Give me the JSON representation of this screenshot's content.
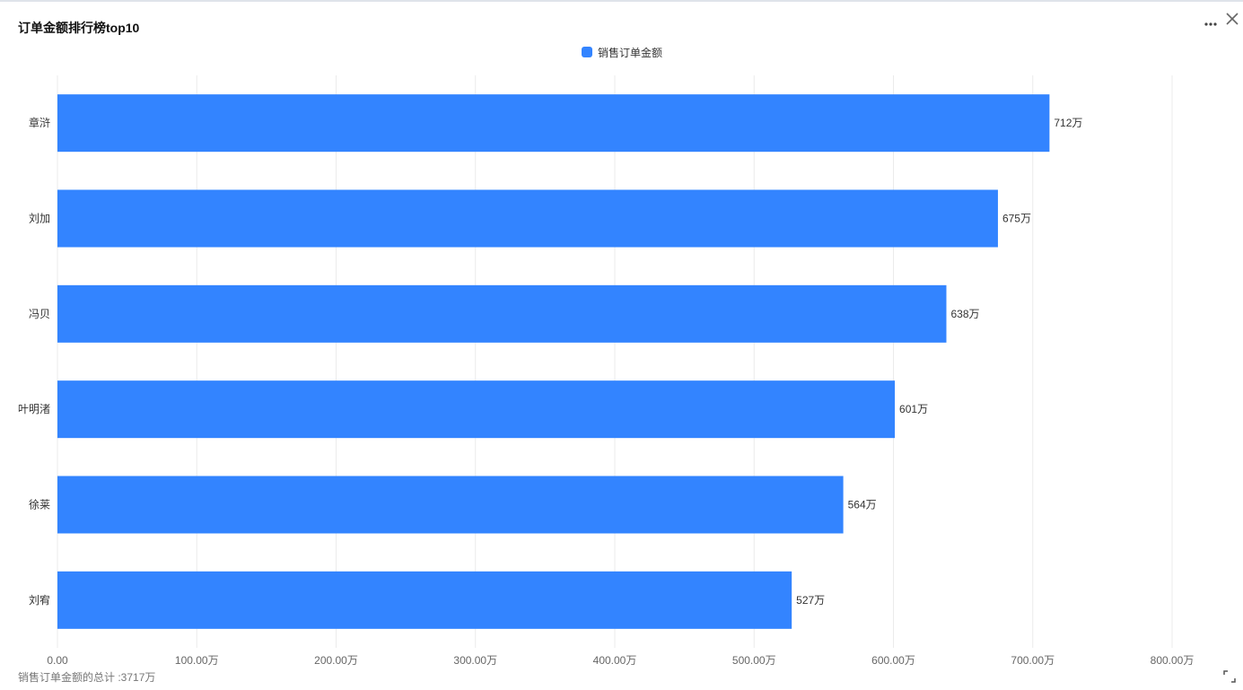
{
  "title": "订单金额排行榜top10",
  "icons": {
    "more": "more-icon",
    "close": "close-icon",
    "expand": "expand-icon"
  },
  "colors": {
    "bar": "#3384FF",
    "grid": "#EBEBEB",
    "tick_text": "#666666",
    "label_text": "#333333"
  },
  "legend": {
    "label": "销售订单金额"
  },
  "footer": {
    "total_text": "销售订单金额的总计 :3717万"
  },
  "chart_data": {
    "type": "bar",
    "orientation": "horizontal",
    "categories": [
      "章浒",
      "刘加",
      "冯贝",
      "叶明渚",
      "徐莱",
      "刘宥"
    ],
    "series": [
      {
        "name": "销售订单金额",
        "values": [
          712,
          675,
          638,
          601,
          564,
          527
        ]
      }
    ],
    "data_labels": [
      "712万",
      "675万",
      "638万",
      "601万",
      "564万",
      "527万"
    ],
    "x_ticks": [
      0,
      100,
      200,
      300,
      400,
      500,
      600,
      700,
      800
    ],
    "x_tick_labels": [
      "0.00",
      "100.00万",
      "200.00万",
      "300.00万",
      "400.00万",
      "500.00万",
      "600.00万",
      "700.00万",
      "800.00万"
    ],
    "xlim": [
      0,
      800
    ],
    "grid": true,
    "legend_position": "top-center"
  }
}
